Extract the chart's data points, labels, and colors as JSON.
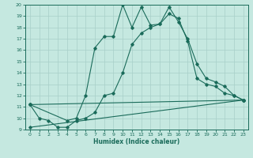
{
  "xlabel": "Humidex (Indice chaleur)",
  "bg_color": "#c5e8e0",
  "grid_color": "#a8cfc8",
  "line_color": "#1a6b5a",
  "xlim": [
    -0.5,
    23.5
  ],
  "ylim": [
    9,
    20
  ],
  "xticks": [
    0,
    1,
    2,
    3,
    4,
    5,
    6,
    7,
    8,
    9,
    10,
    11,
    12,
    13,
    14,
    15,
    16,
    17,
    18,
    19,
    20,
    21,
    22,
    23
  ],
  "yticks": [
    9,
    10,
    11,
    12,
    13,
    14,
    15,
    16,
    17,
    18,
    19,
    20
  ],
  "series1_x": [
    0,
    1,
    2,
    3,
    4,
    5,
    6,
    7,
    8,
    9,
    10,
    11,
    12,
    13,
    14,
    15,
    16,
    17,
    18,
    19,
    20,
    21,
    22,
    23
  ],
  "series1_y": [
    11.2,
    10.0,
    9.8,
    9.2,
    9.2,
    9.8,
    10.0,
    10.5,
    12.0,
    12.2,
    14.0,
    16.5,
    17.5,
    18.0,
    18.3,
    19.2,
    18.8,
    16.8,
    13.5,
    13.0,
    12.8,
    12.2,
    12.0,
    11.6
  ],
  "series2_x": [
    0,
    4,
    5,
    6,
    7,
    8,
    9,
    10,
    11,
    12,
    13,
    14,
    15,
    16,
    17,
    18,
    19,
    20,
    21,
    22,
    23
  ],
  "series2_y": [
    11.2,
    9.8,
    10.0,
    12.0,
    16.2,
    17.2,
    17.2,
    20.0,
    18.0,
    19.8,
    18.2,
    18.3,
    19.8,
    18.5,
    17.0,
    14.8,
    13.5,
    13.2,
    12.8,
    12.0,
    11.6
  ],
  "series3_x": [
    0,
    23
  ],
  "series3_y": [
    11.2,
    11.6
  ],
  "series4_x": [
    0,
    23
  ],
  "series4_y": [
    9.2,
    11.6
  ]
}
